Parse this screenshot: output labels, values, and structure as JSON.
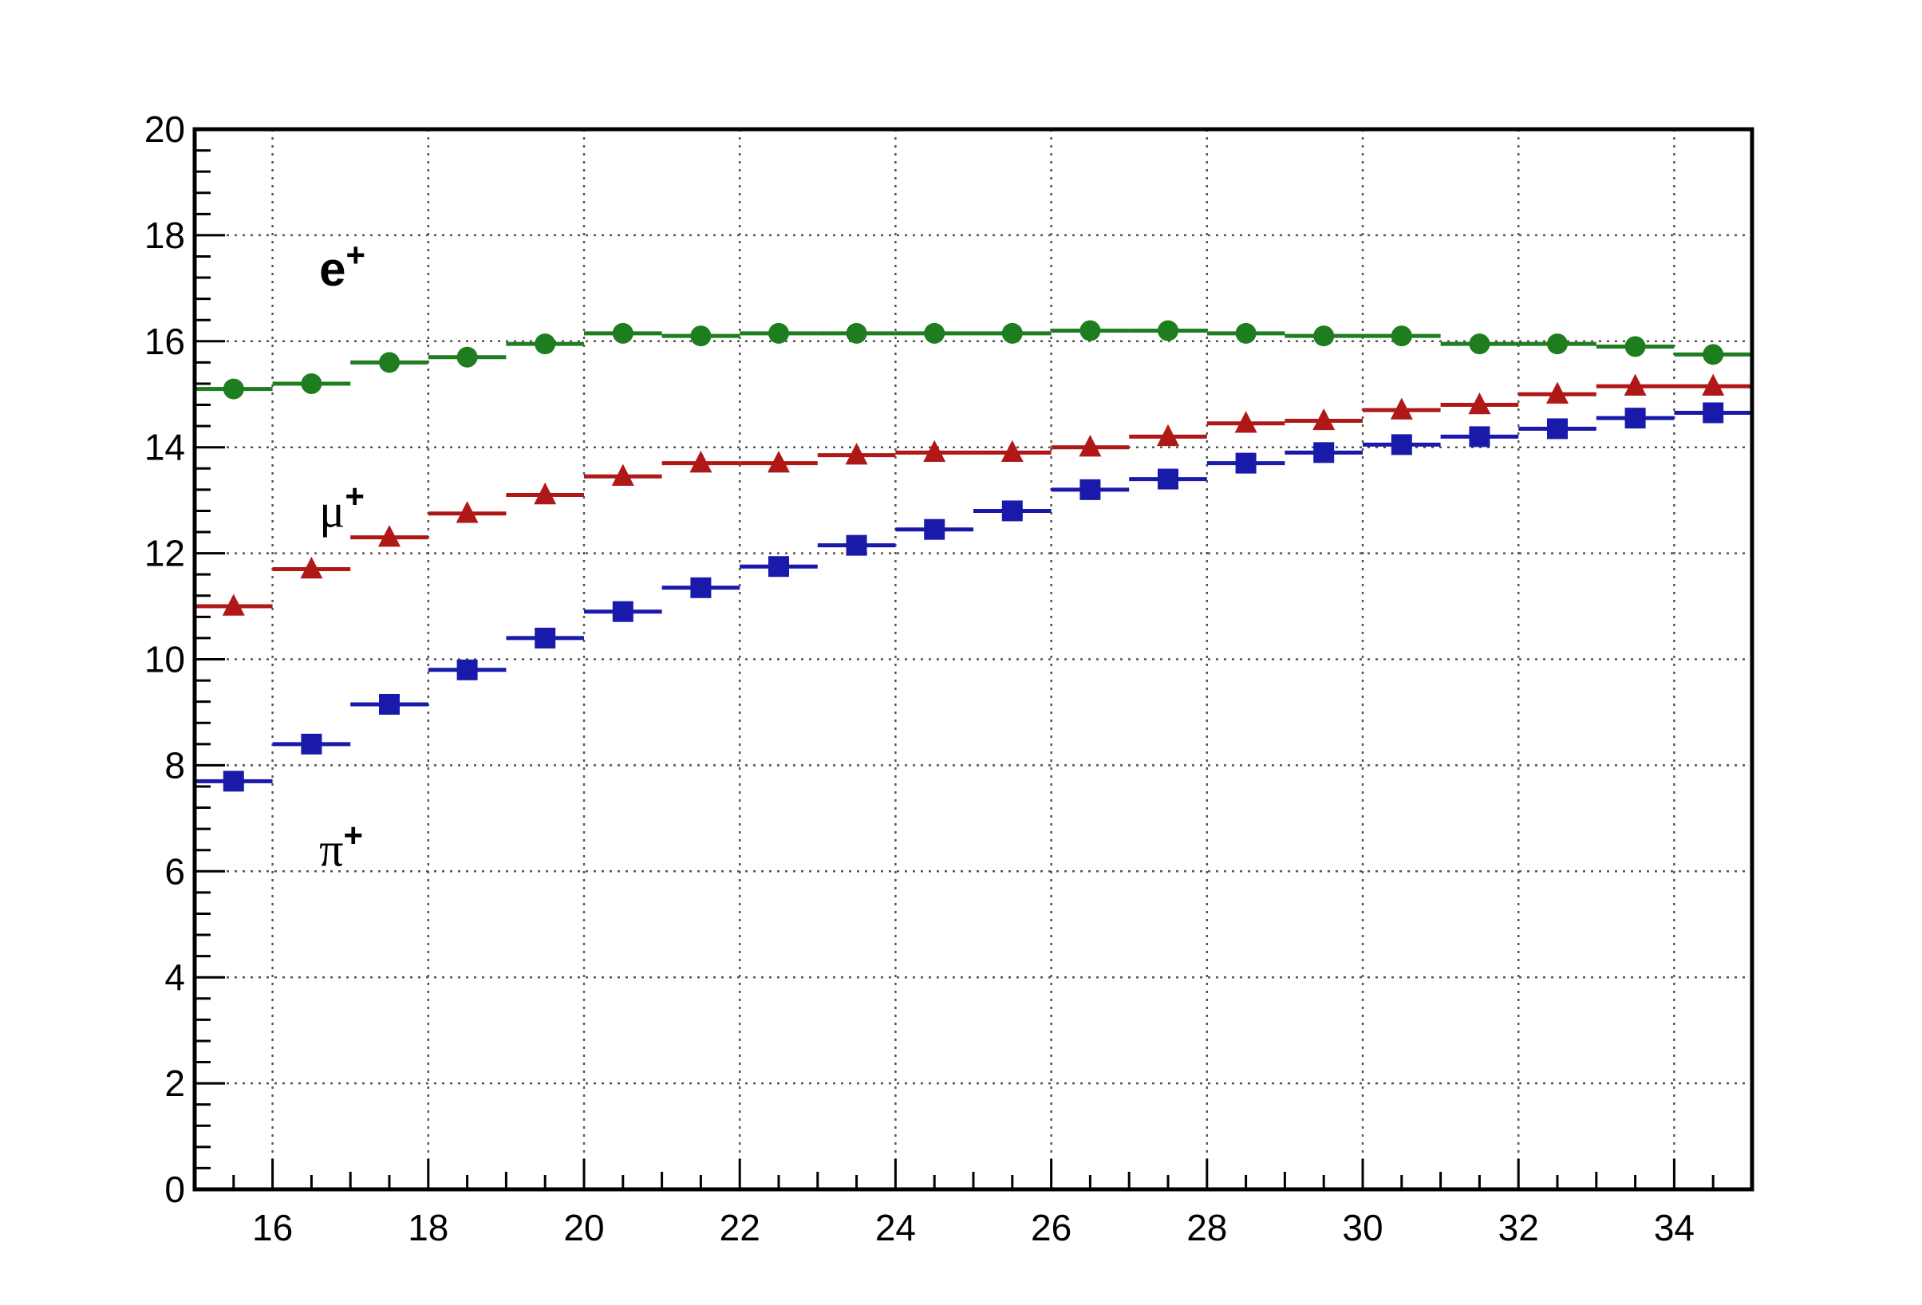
{
  "chart_data": {
    "type": "scatter",
    "title": "",
    "xlabel": "",
    "ylabel": "",
    "xlim": [
      15,
      35
    ],
    "ylim": [
      0,
      20
    ],
    "grid": true,
    "x_ticks": [
      16,
      18,
      20,
      22,
      24,
      26,
      28,
      30,
      32,
      34
    ],
    "y_ticks": [
      0,
      2,
      4,
      6,
      8,
      10,
      12,
      14,
      16,
      18,
      20
    ],
    "bin_width": 1,
    "x": [
      15.5,
      16.5,
      17.5,
      18.5,
      19.5,
      20.5,
      21.5,
      22.5,
      23.5,
      24.5,
      25.5,
      26.5,
      27.5,
      28.5,
      29.5,
      30.5,
      31.5,
      32.5,
      33.5,
      34.5
    ],
    "series": [
      {
        "label": "e",
        "label_sup": "+",
        "marker": "circle",
        "color": "#1e7d1e",
        "values": [
          15.1,
          15.2,
          15.6,
          15.7,
          15.95,
          16.15,
          16.1,
          16.15,
          16.15,
          16.15,
          16.15,
          16.2,
          16.2,
          16.15,
          16.1,
          16.1,
          15.95,
          15.95,
          15.9,
          15.75
        ]
      },
      {
        "label": "μ",
        "label_sup": "+",
        "marker": "triangle",
        "color": "#b01818",
        "values": [
          11.0,
          11.7,
          12.3,
          12.75,
          13.1,
          13.45,
          13.7,
          13.7,
          13.85,
          13.9,
          13.9,
          14.0,
          14.2,
          14.45,
          14.5,
          14.7,
          14.8,
          15.0,
          15.15,
          15.15
        ]
      },
      {
        "label": "π",
        "label_sup": "+",
        "marker": "square",
        "color": "#1a1aaa",
        "values": [
          7.7,
          8.4,
          9.15,
          9.8,
          10.4,
          10.9,
          11.35,
          11.75,
          12.15,
          12.45,
          12.8,
          13.2,
          13.4,
          13.7,
          13.9,
          14.05,
          14.2,
          14.35,
          14.55,
          14.65
        ]
      }
    ]
  }
}
